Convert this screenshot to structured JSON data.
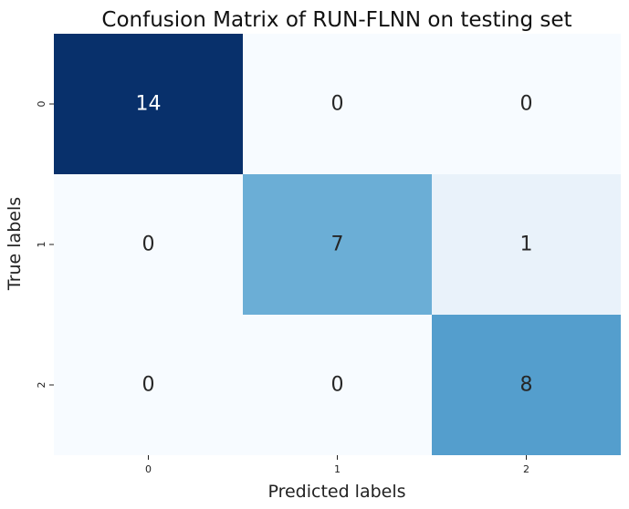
{
  "chart_data": {
    "type": "heatmap",
    "title": "Confusion Matrix of RUN-FLNN on testing set",
    "xlabel": "Predicted labels",
    "ylabel": "True labels",
    "x_ticks": [
      "0",
      "1",
      "2"
    ],
    "y_ticks": [
      "0",
      "1",
      "2"
    ],
    "matrix": [
      [
        14,
        0,
        0
      ],
      [
        0,
        7,
        1
      ],
      [
        0,
        0,
        8
      ]
    ],
    "colormap": "Blues",
    "value_range": [
      0,
      14
    ],
    "colorbar": false,
    "annotations": true
  }
}
